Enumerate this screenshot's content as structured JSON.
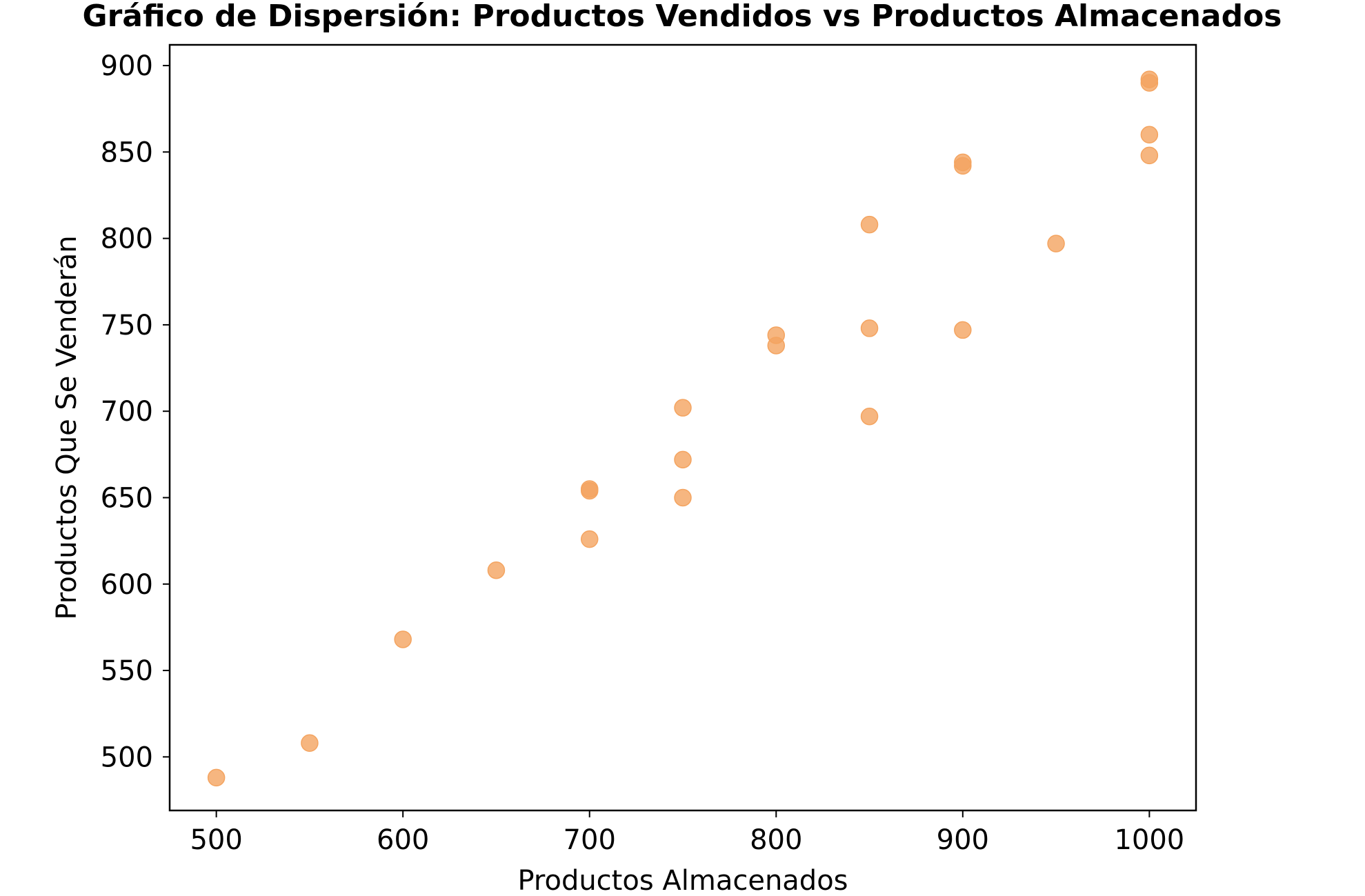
{
  "chart_data": {
    "type": "scatter",
    "title": "Gráfico de Dispersión: Productos Vendidos vs Productos Almacenados",
    "xlabel": "Productos Almacenados",
    "ylabel": "Productos Que Se Venderán",
    "xlim": [
      475,
      1025
    ],
    "ylim": [
      469,
      912
    ],
    "xticks": [
      500,
      600,
      700,
      800,
      900,
      1000
    ],
    "yticks": [
      500,
      550,
      600,
      650,
      700,
      750,
      800,
      850,
      900
    ],
    "grid": false,
    "marker_color": "#f4a460",
    "marker_opacity": 0.8,
    "points": [
      {
        "x": 500,
        "y": 488
      },
      {
        "x": 550,
        "y": 508
      },
      {
        "x": 600,
        "y": 568
      },
      {
        "x": 650,
        "y": 608
      },
      {
        "x": 700,
        "y": 626
      },
      {
        "x": 700,
        "y": 654
      },
      {
        "x": 700,
        "y": 655
      },
      {
        "x": 750,
        "y": 650
      },
      {
        "x": 750,
        "y": 672
      },
      {
        "x": 750,
        "y": 702
      },
      {
        "x": 800,
        "y": 738
      },
      {
        "x": 800,
        "y": 744
      },
      {
        "x": 850,
        "y": 697
      },
      {
        "x": 850,
        "y": 748
      },
      {
        "x": 850,
        "y": 808
      },
      {
        "x": 900,
        "y": 747
      },
      {
        "x": 900,
        "y": 842
      },
      {
        "x": 900,
        "y": 844
      },
      {
        "x": 950,
        "y": 797
      },
      {
        "x": 1000,
        "y": 848
      },
      {
        "x": 1000,
        "y": 860
      },
      {
        "x": 1000,
        "y": 890
      },
      {
        "x": 1000,
        "y": 892
      }
    ]
  }
}
